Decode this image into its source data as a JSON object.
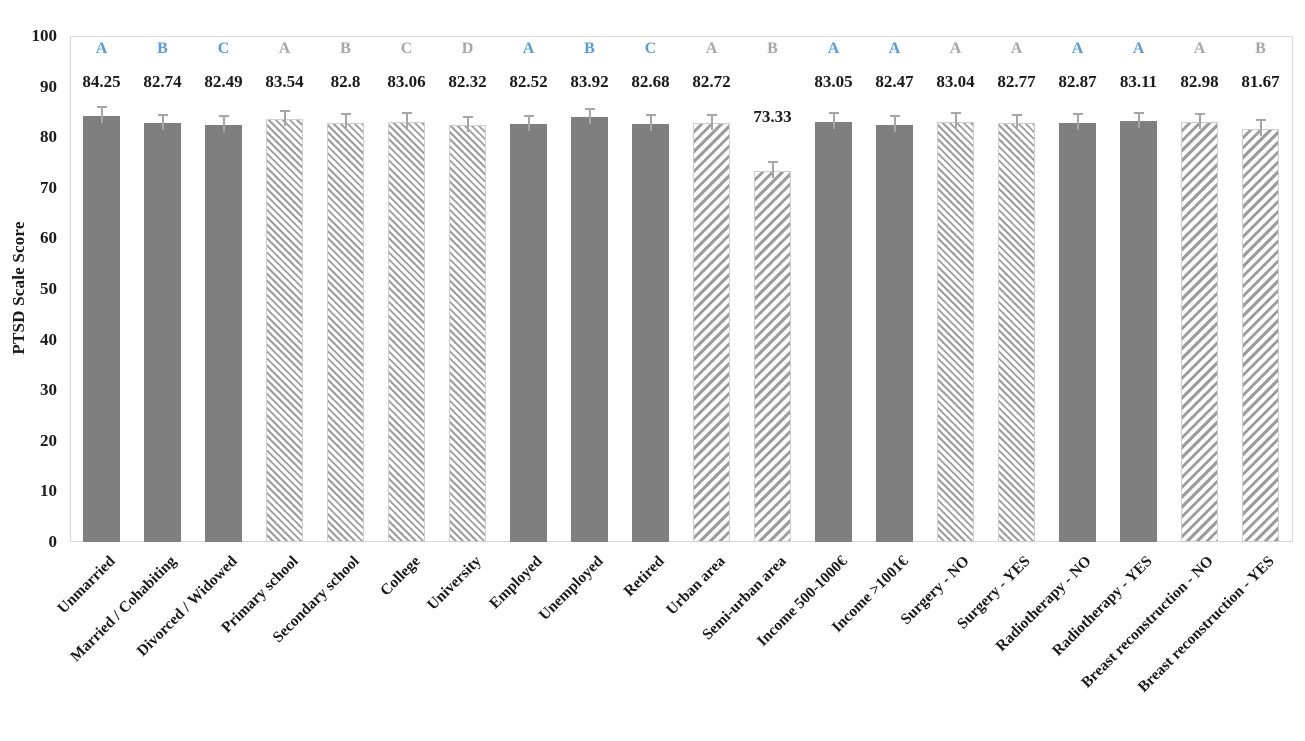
{
  "chart_data": {
    "type": "bar",
    "title": "",
    "ylabel": "PTSD Scale Score",
    "xlabel": "",
    "ylim": [
      0,
      100
    ],
    "yticks": [
      0,
      10,
      20,
      30,
      40,
      50,
      60,
      70,
      80,
      90,
      100
    ],
    "grid": false,
    "legend": "none",
    "categories": [
      "Unmarried",
      "Married / Cohabiting",
      "Divorced / Widowed",
      "Primary school",
      "Secondary school",
      "College",
      "University",
      "Employed",
      "Unemployed",
      "Retired",
      "Urban area",
      "Semi-urban area",
      "Income 500-1000€",
      "Income >1001€",
      "Surgery - NO",
      "Surgery - YES",
      "Radiotherapy - NO",
      "Radiotherapy - YES",
      "Breast reconstruction - NO",
      "Breast reconstruction - YES"
    ],
    "values": [
      84.25,
      82.74,
      82.49,
      83.54,
      82.8,
      83.06,
      82.32,
      82.52,
      83.92,
      82.68,
      82.72,
      73.33,
      83.05,
      82.47,
      83.04,
      82.77,
      82.87,
      83.11,
      82.98,
      81.67
    ],
    "value_labels": [
      "84.25",
      "82.74",
      "82.49",
      "83.54",
      "82.8",
      "83.06",
      "82.32",
      "82.52",
      "83.92",
      "82.68",
      "82.72",
      "73.33",
      "83.05",
      "82.47",
      "83.04",
      "82.77",
      "82.87",
      "83.11",
      "82.98",
      "81.67"
    ],
    "significance_letters": [
      "A",
      "B",
      "C",
      "A",
      "B",
      "C",
      "D",
      "A",
      "B",
      "C",
      "A",
      "B",
      "A",
      "A",
      "A",
      "A",
      "A",
      "A",
      "A",
      "B"
    ],
    "letter_colors": [
      "blue",
      "blue",
      "blue",
      "gray",
      "gray",
      "gray",
      "gray",
      "blue",
      "blue",
      "blue",
      "gray",
      "gray",
      "blue",
      "blue",
      "gray",
      "gray",
      "blue",
      "blue",
      "gray",
      "gray"
    ],
    "bar_styles": [
      "solid",
      "solid",
      "solid",
      "hatch-back",
      "hatch-back",
      "hatch-back",
      "hatch-back",
      "solid",
      "solid",
      "solid",
      "hatch-fwd",
      "hatch-fwd",
      "solid",
      "solid",
      "hatch-back",
      "hatch-back",
      "solid",
      "solid",
      "hatch-fwd",
      "hatch-fwd"
    ],
    "error_bars": {
      "shown": true,
      "approx_magnitude": 1.7
    },
    "colors": {
      "bar_solid": "#7f7f7f",
      "hatch_stripe": "#9c9c9c",
      "hatch_bg": "#ffffff",
      "letter_blue": "#5b9bd5",
      "letter_gray": "#a6a6a6",
      "error_bar": "#a6a6a6",
      "plot_border": "#d9d9d9",
      "text": "#1a1a1a"
    }
  }
}
